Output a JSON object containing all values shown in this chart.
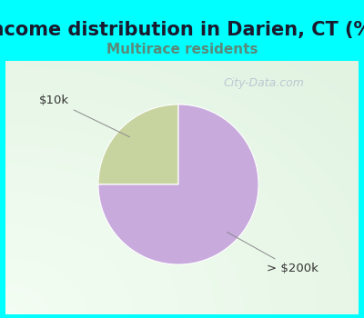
{
  "title": "Income distribution in Darien, CT (%)",
  "subtitle": "Multirace residents",
  "outer_bg_color": "#00FFFF",
  "chart_bg_color": "#FFFFFF",
  "slices": [
    {
      "label": "$10k",
      "value": 25,
      "color": "#C8D4A0"
    },
    {
      "label": "> $200k",
      "value": 75,
      "color": "#C8AADD"
    }
  ],
  "startangle": 90,
  "title_fontsize": 15,
  "title_color": "#1a1a2e",
  "subtitle_fontsize": 11,
  "subtitle_color": "#5a8a7a",
  "annotation_color": "#333333",
  "annotation_fontsize": 9.5,
  "watermark": "City-Data.com",
  "watermark_color": "#AABBCC",
  "watermark_fontsize": 9
}
